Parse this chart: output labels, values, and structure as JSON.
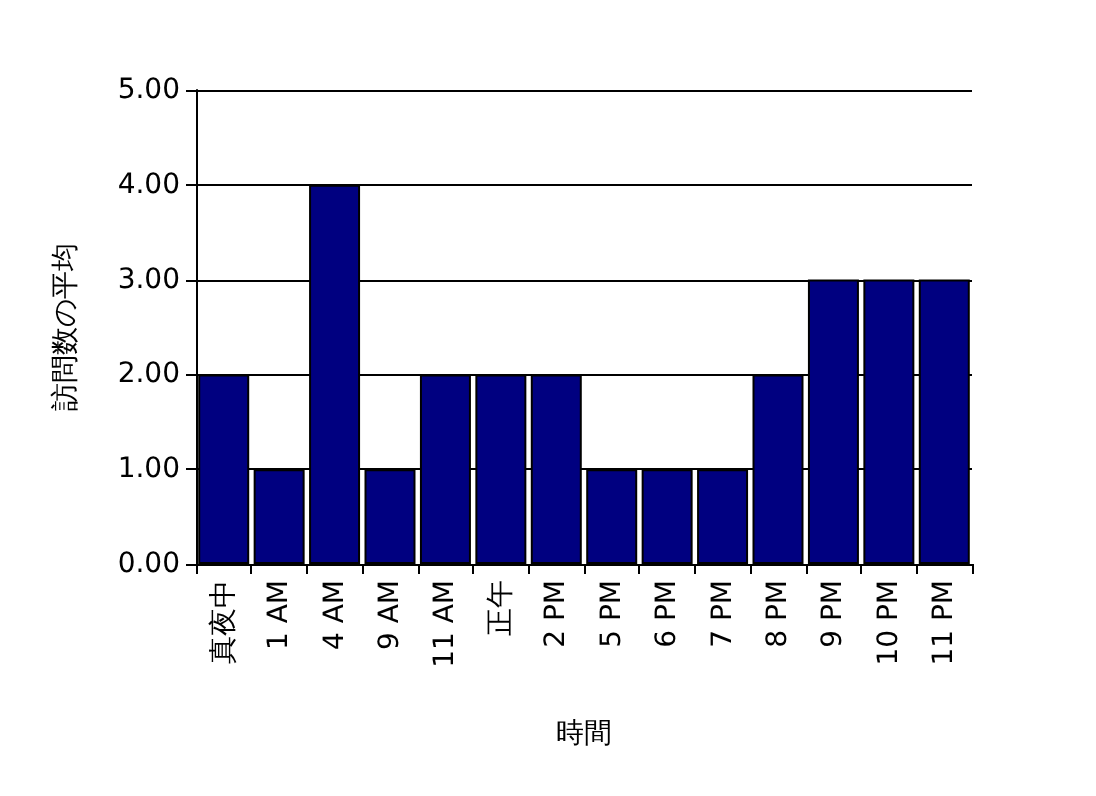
{
  "chart_data": {
    "type": "bar",
    "xlabel": "時間",
    "ylabel": "訪問数の平均",
    "categories": [
      "真夜中",
      "1 AM",
      "4 AM",
      "9 AM",
      "11 AM",
      "正午",
      "2 PM",
      "5 PM",
      "6 PM",
      "7 PM",
      "8 PM",
      "9 PM",
      "10 PM",
      "11 PM"
    ],
    "values": [
      2,
      1,
      4,
      1,
      2,
      2,
      2,
      1,
      1,
      1,
      2,
      3,
      3,
      3
    ],
    "color": "#000080",
    "ylim": [
      0,
      5
    ],
    "yticks": [
      {
        "value": 0,
        "label": "0.00"
      },
      {
        "value": 1,
        "label": "1.00"
      },
      {
        "value": 2,
        "label": "2.00"
      },
      {
        "value": 3,
        "label": "3.00"
      },
      {
        "value": 4,
        "label": "4.00"
      },
      {
        "value": 5,
        "label": "5.00"
      }
    ],
    "grid": "y"
  }
}
